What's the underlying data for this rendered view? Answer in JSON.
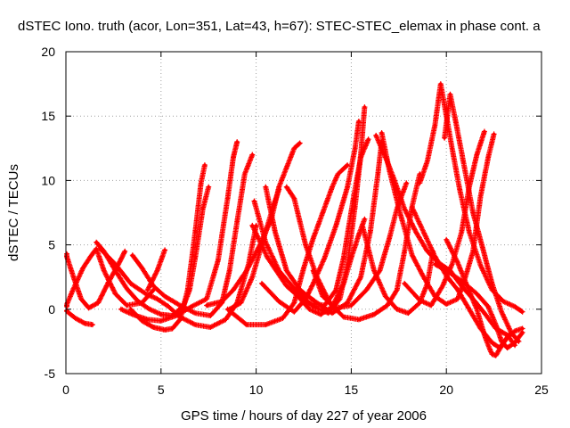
{
  "chart_data": {
    "type": "scatter",
    "title": "dSTEC Iono. truth (acor, Lon=351, Lat=43, h=67): STEC-STEC_elemax in phase cont. a",
    "xlabel": "GPS time / hours of day 227 of year 2006",
    "ylabel": "dSTEC  / TECUs",
    "xlim": [
      0,
      25
    ],
    "ylim": [
      -5,
      20
    ],
    "xticks": [
      0,
      5,
      10,
      15,
      20,
      25
    ],
    "yticks": [
      -5,
      0,
      5,
      10,
      15,
      20
    ],
    "xtick_labels": [
      "0",
      "5",
      "10",
      "15",
      "20",
      "25"
    ],
    "ytick_labels": [
      "-5",
      "0",
      "5",
      "10",
      "15",
      "20"
    ],
    "grid": true,
    "marker": "+",
    "color": "#ff0000",
    "series": [
      {
        "points": [
          [
            0,
            4.3
          ],
          [
            0.4,
            2.5
          ],
          [
            0.8,
            0.8
          ],
          [
            1.2,
            0.1
          ],
          [
            1.7,
            0.5
          ],
          [
            2.2,
            2.0
          ],
          [
            2.8,
            3.6
          ],
          [
            3.1,
            4.5
          ]
        ]
      },
      {
        "points": [
          [
            0,
            0.2
          ],
          [
            0.4,
            1.6
          ],
          [
            0.9,
            3.2
          ],
          [
            1.3,
            4.1
          ],
          [
            1.6,
            4.7
          ],
          [
            2.0,
            3.0
          ],
          [
            2.6,
            1.2
          ],
          [
            3.2,
            0.3
          ],
          [
            4.0,
            0.5
          ],
          [
            4.6,
            1.5
          ]
        ]
      },
      {
        "points": [
          [
            0,
            -0.1
          ],
          [
            0.5,
            -0.7
          ],
          [
            1.0,
            -1.1
          ],
          [
            1.4,
            -1.2
          ]
        ]
      },
      {
        "points": [
          [
            1.6,
            5.2
          ],
          [
            2.0,
            4.5
          ],
          [
            2.6,
            3.0
          ],
          [
            3.2,
            1.6
          ],
          [
            3.8,
            0.6
          ],
          [
            4.4,
            0.0
          ],
          [
            5.0,
            -0.4
          ],
          [
            5.6,
            -0.5
          ],
          [
            6.2,
            0.3
          ],
          [
            6.5,
            1.5
          ],
          [
            6.8,
            4.0
          ],
          [
            7.2,
            7.8
          ],
          [
            7.5,
            9.5
          ]
        ]
      },
      {
        "points": [
          [
            1.8,
            4.7
          ],
          [
            2.6,
            3.5
          ],
          [
            3.4,
            2.0
          ],
          [
            4.2,
            1.2
          ],
          [
            4.8,
            0.8
          ],
          [
            5.4,
            0.2
          ],
          [
            6.0,
            -0.6
          ],
          [
            6.8,
            -1.2
          ],
          [
            7.6,
            -1.4
          ],
          [
            8.4,
            -0.8
          ],
          [
            9.0,
            0.5
          ],
          [
            9.6,
            3.5
          ],
          [
            10.0,
            6.5
          ]
        ]
      },
      {
        "points": [
          [
            3.4,
            0.0
          ],
          [
            4.0,
            -0.9
          ],
          [
            4.6,
            -1.4
          ],
          [
            5.2,
            -1.6
          ],
          [
            5.6,
            -1.5
          ],
          [
            6.0,
            -0.8
          ],
          [
            6.4,
            1.5
          ],
          [
            6.8,
            6.0
          ],
          [
            7.1,
            9.8
          ],
          [
            7.3,
            11.2
          ]
        ]
      },
      {
        "points": [
          [
            2.9,
            0.0
          ],
          [
            3.5,
            -0.4
          ],
          [
            4.3,
            -0.8
          ],
          [
            5.0,
            -0.9
          ],
          [
            5.8,
            -0.5
          ],
          [
            6.6,
            0.2
          ],
          [
            7.4,
            0.8
          ],
          [
            8.0,
            3.8
          ],
          [
            8.5,
            8.6
          ],
          [
            8.8,
            11.8
          ],
          [
            9.0,
            13.0
          ]
        ]
      },
      {
        "points": [
          [
            3.5,
            4.2
          ],
          [
            4.0,
            3.2
          ],
          [
            4.6,
            1.8
          ],
          [
            5.2,
            1.0
          ],
          [
            6.0,
            0.3
          ],
          [
            6.8,
            -0.3
          ],
          [
            7.6,
            -0.5
          ],
          [
            8.2,
            0.5
          ],
          [
            8.6,
            3.0
          ],
          [
            9.0,
            6.8
          ],
          [
            9.4,
            10.5
          ],
          [
            9.8,
            12.0
          ]
        ]
      },
      {
        "points": [
          [
            4.3,
            1.5
          ],
          [
            4.8,
            3.0
          ],
          [
            5.2,
            4.6
          ]
        ]
      },
      {
        "points": [
          [
            9.8,
            6.5
          ],
          [
            10.6,
            4.0
          ],
          [
            11.6,
            1.8
          ],
          [
            12.6,
            0.5
          ],
          [
            13.6,
            0.3
          ],
          [
            14.2,
            1.5
          ],
          [
            14.6,
            4.0
          ],
          [
            15.1,
            8.5
          ],
          [
            15.5,
            11.8
          ],
          [
            15.9,
            13.2
          ]
        ]
      },
      {
        "points": [
          [
            9.9,
            8.4
          ],
          [
            10.5,
            5.2
          ],
          [
            11.2,
            3.0
          ],
          [
            12.0,
            1.6
          ],
          [
            13.0,
            0.2
          ],
          [
            13.8,
            -0.3
          ],
          [
            14.4,
            0.8
          ],
          [
            14.8,
            3.5
          ],
          [
            15.2,
            8.0
          ],
          [
            15.5,
            12.0
          ],
          [
            15.7,
            15.7
          ]
        ]
      },
      {
        "points": [
          [
            10.5,
            9.5
          ],
          [
            11.0,
            6.0
          ],
          [
            11.6,
            3.0
          ],
          [
            12.3,
            1.5
          ],
          [
            13.2,
            0.5
          ],
          [
            14.0,
            -0.3
          ],
          [
            14.8,
            0.5
          ],
          [
            15.5,
            2.5
          ],
          [
            16.0,
            6.0
          ],
          [
            16.4,
            10.5
          ],
          [
            16.6,
            13.0
          ]
        ]
      },
      {
        "points": [
          [
            11.6,
            9.5
          ],
          [
            12.0,
            8.6
          ],
          [
            12.6,
            5.0
          ],
          [
            13.2,
            2.5
          ],
          [
            13.9,
            0.4
          ],
          [
            14.6,
            -0.6
          ],
          [
            15.4,
            -0.8
          ],
          [
            16.2,
            -0.4
          ],
          [
            16.9,
            0.3
          ],
          [
            17.4,
            1.5
          ],
          [
            17.8,
            4.5
          ],
          [
            18.2,
            8.0
          ],
          [
            18.6,
            10.5
          ]
        ]
      },
      {
        "points": [
          [
            7.4,
            0.3
          ],
          [
            8.2,
            0.6
          ],
          [
            8.8,
            1.5
          ],
          [
            9.5,
            3.0
          ],
          [
            10.2,
            5.0
          ],
          [
            10.8,
            7.0
          ],
          [
            11.2,
            9.5
          ],
          [
            11.6,
            11.0
          ],
          [
            12.0,
            12.5
          ],
          [
            12.3,
            12.9
          ]
        ]
      },
      {
        "points": [
          [
            8.5,
            0.0
          ],
          [
            9.5,
            -1.2
          ],
          [
            10.5,
            -1.2
          ],
          [
            11.4,
            -0.7
          ],
          [
            12.0,
            0.5
          ],
          [
            12.5,
            3.2
          ],
          [
            13.0,
            5.5
          ],
          [
            13.5,
            7.5
          ],
          [
            14.0,
            9.5
          ],
          [
            14.3,
            10.5
          ],
          [
            14.8,
            11.2
          ]
        ]
      },
      {
        "points": [
          [
            10.3,
            2.0
          ],
          [
            11.2,
            0.6
          ],
          [
            12.0,
            -0.2
          ],
          [
            12.6,
            0.8
          ],
          [
            13.0,
            2.0
          ],
          [
            13.6,
            4.0
          ],
          [
            14.2,
            6.5
          ],
          [
            14.8,
            9.5
          ],
          [
            15.2,
            12.5
          ],
          [
            15.4,
            14.6
          ]
        ]
      },
      {
        "points": [
          [
            16.6,
            13.7
          ],
          [
            17.0,
            10.8
          ],
          [
            17.6,
            7.3
          ],
          [
            18.2,
            4.2
          ],
          [
            18.8,
            2.5
          ],
          [
            19.4,
            1.0
          ],
          [
            20.0,
            0.4
          ],
          [
            20.6,
            0.8
          ],
          [
            21.0,
            2.5
          ],
          [
            21.4,
            4.5
          ],
          [
            21.8,
            8.8
          ],
          [
            22.2,
            11.8
          ],
          [
            22.5,
            13.6
          ]
        ]
      },
      {
        "points": [
          [
            16.3,
            13.5
          ],
          [
            16.8,
            11.8
          ],
          [
            17.2,
            10.3
          ],
          [
            17.8,
            7.8
          ],
          [
            18.4,
            6.0
          ],
          [
            19.0,
            4.5
          ],
          [
            19.6,
            3.6
          ],
          [
            20.2,
            3.0
          ],
          [
            20.8,
            1.8
          ],
          [
            21.4,
            0.8
          ],
          [
            22.0,
            -0.3
          ],
          [
            22.6,
            -1.5
          ],
          [
            23.2,
            -2.0
          ],
          [
            23.6,
            -2.8
          ]
        ]
      },
      {
        "points": [
          [
            18.6,
            9.8
          ],
          [
            19.0,
            11.5
          ],
          [
            19.4,
            14.3
          ],
          [
            19.7,
            17.5
          ],
          [
            20.0,
            15.0
          ],
          [
            20.3,
            12.5
          ],
          [
            20.7,
            9.3
          ],
          [
            21.2,
            6.0
          ],
          [
            21.8,
            3.4
          ],
          [
            22.4,
            1.5
          ],
          [
            23.0,
            0.6
          ],
          [
            23.6,
            0.2
          ],
          [
            24.0,
            -0.2
          ]
        ]
      },
      {
        "points": [
          [
            19.9,
            13.3
          ],
          [
            20.2,
            16.7
          ],
          [
            20.5,
            14.5
          ],
          [
            20.9,
            11.4
          ],
          [
            21.4,
            7.5
          ],
          [
            21.9,
            4.8
          ],
          [
            22.4,
            2.0
          ],
          [
            22.9,
            -0.2
          ],
          [
            23.4,
            -1.8
          ],
          [
            23.8,
            -2.5
          ]
        ]
      },
      {
        "points": [
          [
            17.8,
            2.0
          ],
          [
            18.6,
            0.7
          ],
          [
            19.2,
            0.3
          ],
          [
            19.8,
            1.8
          ],
          [
            20.3,
            3.5
          ],
          [
            20.8,
            6.0
          ],
          [
            21.2,
            9.5
          ],
          [
            21.6,
            12.0
          ],
          [
            22.0,
            13.8
          ]
        ]
      },
      {
        "points": [
          [
            18.2,
            7.9
          ],
          [
            18.8,
            6.0
          ],
          [
            19.4,
            4.1
          ],
          [
            20.0,
            2.6
          ],
          [
            20.6,
            1.5
          ],
          [
            21.2,
            0.0
          ],
          [
            21.8,
            -1.5
          ],
          [
            22.4,
            -2.6
          ],
          [
            22.8,
            -3.0
          ],
          [
            23.2,
            -2.2
          ],
          [
            23.6,
            -1.7
          ],
          [
            24.0,
            -1.5
          ]
        ]
      },
      {
        "points": [
          [
            19.4,
            3.5
          ],
          [
            20.0,
            3.0
          ],
          [
            20.8,
            2.2
          ],
          [
            21.6,
            1.2
          ],
          [
            22.2,
            0.2
          ],
          [
            22.6,
            -1.2
          ],
          [
            22.9,
            -2.5
          ],
          [
            23.2,
            -3.0
          ],
          [
            23.6,
            -2.6
          ],
          [
            24.0,
            -1.8
          ]
        ]
      },
      {
        "points": [
          [
            20.0,
            5.4
          ],
          [
            20.6,
            3.6
          ],
          [
            21.2,
            1.4
          ],
          [
            21.6,
            0.0
          ],
          [
            22.0,
            -2.0
          ],
          [
            22.2,
            -2.8
          ],
          [
            22.4,
            -3.5
          ],
          [
            22.6,
            -3.6
          ],
          [
            23.0,
            -2.6
          ],
          [
            23.4,
            -1.8
          ]
        ]
      },
      {
        "points": [
          [
            8.6,
            0.0
          ],
          [
            9.2,
            0.5
          ],
          [
            9.8,
            2.5
          ],
          [
            10.4,
            5.5
          ],
          [
            10.9,
            8.0
          ],
          [
            11.2,
            9.3
          ]
        ]
      },
      {
        "points": [
          [
            12.2,
            1.0
          ],
          [
            12.8,
            0.0
          ],
          [
            13.4,
            -0.4
          ],
          [
            14.0,
            0.2
          ],
          [
            14.6,
            2.0
          ],
          [
            15.0,
            4.0
          ],
          [
            15.4,
            5.8
          ],
          [
            15.7,
            7.0
          ]
        ]
      },
      {
        "points": [
          [
            13.0,
            3.0
          ],
          [
            13.5,
            1.0
          ],
          [
            14.2,
            0.1
          ],
          [
            15.0,
            0.3
          ],
          [
            15.8,
            1.5
          ],
          [
            16.5,
            3.0
          ],
          [
            17.0,
            5.5
          ],
          [
            17.4,
            7.8
          ],
          [
            17.9,
            9.8
          ]
        ]
      },
      {
        "points": [
          [
            15.6,
            6.4
          ],
          [
            16.2,
            3.0
          ],
          [
            16.8,
            1.0
          ],
          [
            17.4,
            0.0
          ],
          [
            18.0,
            -0.3
          ],
          [
            18.6,
            0.5
          ],
          [
            19.0,
            2.0
          ],
          [
            19.3,
            4.5
          ]
        ]
      }
    ]
  }
}
